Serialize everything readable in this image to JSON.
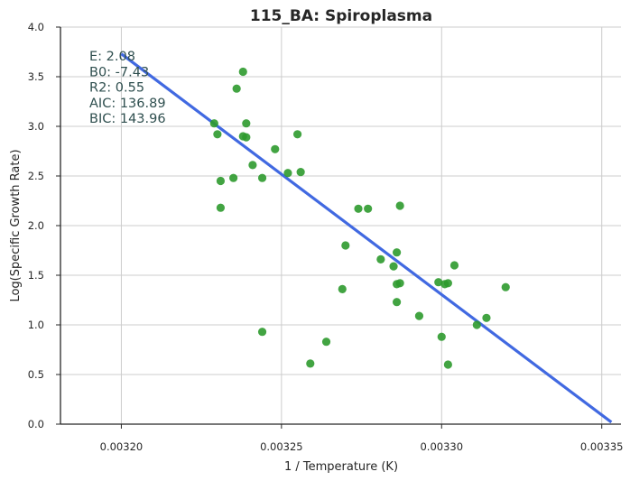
{
  "chart_data": {
    "type": "scatter",
    "title": "115_BA: Spiroplasma",
    "xlabel": "1 / Temperature (K)",
    "ylabel": "Log(Specific Growth Rate)",
    "xlim": [
      0.003181,
      0.003356
    ],
    "ylim": [
      0.0,
      4.0
    ],
    "x_ticks": [
      0.0032,
      0.00325,
      0.0033,
      0.00335
    ],
    "x_tick_labels": [
      "0.00320",
      "0.00325",
      "0.00330",
      "0.00335"
    ],
    "y_ticks": [
      0.0,
      0.5,
      1.0,
      1.5,
      2.0,
      2.5,
      3.0,
      3.5,
      4.0
    ],
    "y_tick_labels": [
      "0.0",
      "0.5",
      "1.0",
      "1.5",
      "2.0",
      "2.5",
      "3.0",
      "3.5",
      "4.0"
    ],
    "grid": true,
    "point_color": "#2e9a2e",
    "line_color": "#4169e1",
    "points": [
      {
        "x": 0.003229,
        "y": 3.03
      },
      {
        "x": 0.00323,
        "y": 2.92
      },
      {
        "x": 0.003231,
        "y": 2.45
      },
      {
        "x": 0.003231,
        "y": 2.18
      },
      {
        "x": 0.003235,
        "y": 2.48
      },
      {
        "x": 0.003236,
        "y": 3.38
      },
      {
        "x": 0.003238,
        "y": 3.55
      },
      {
        "x": 0.003238,
        "y": 2.9
      },
      {
        "x": 0.003239,
        "y": 2.89
      },
      {
        "x": 0.003239,
        "y": 3.03
      },
      {
        "x": 0.003241,
        "y": 2.61
      },
      {
        "x": 0.003244,
        "y": 2.48
      },
      {
        "x": 0.003244,
        "y": 0.93
      },
      {
        "x": 0.003248,
        "y": 2.77
      },
      {
        "x": 0.003252,
        "y": 2.53
      },
      {
        "x": 0.003255,
        "y": 2.92
      },
      {
        "x": 0.003256,
        "y": 2.54
      },
      {
        "x": 0.003259,
        "y": 0.61
      },
      {
        "x": 0.003264,
        "y": 0.83
      },
      {
        "x": 0.003269,
        "y": 1.36
      },
      {
        "x": 0.00327,
        "y": 1.8
      },
      {
        "x": 0.003274,
        "y": 2.17
      },
      {
        "x": 0.003277,
        "y": 2.17
      },
      {
        "x": 0.003281,
        "y": 1.66
      },
      {
        "x": 0.003285,
        "y": 1.59
      },
      {
        "x": 0.003286,
        "y": 1.73
      },
      {
        "x": 0.003286,
        "y": 1.41
      },
      {
        "x": 0.003286,
        "y": 1.23
      },
      {
        "x": 0.003287,
        "y": 2.2
      },
      {
        "x": 0.003287,
        "y": 1.42
      },
      {
        "x": 0.003293,
        "y": 1.09
      },
      {
        "x": 0.003299,
        "y": 1.43
      },
      {
        "x": 0.0033,
        "y": 0.88
      },
      {
        "x": 0.003301,
        "y": 1.41
      },
      {
        "x": 0.003302,
        "y": 1.42
      },
      {
        "x": 0.003302,
        "y": 0.6
      },
      {
        "x": 0.003304,
        "y": 1.6
      },
      {
        "x": 0.003311,
        "y": 1.0
      },
      {
        "x": 0.003314,
        "y": 1.07
      },
      {
        "x": 0.00332,
        "y": 1.38
      }
    ],
    "fit_line": {
      "x": [
        0.0032,
        0.003353
      ],
      "y": [
        3.73,
        0.02
      ]
    },
    "annotations": [
      "E:  2.08",
      "B0:  -7.43",
      "R2:  0.55",
      "AIC: 136.89",
      "BIC: 143.96"
    ]
  }
}
